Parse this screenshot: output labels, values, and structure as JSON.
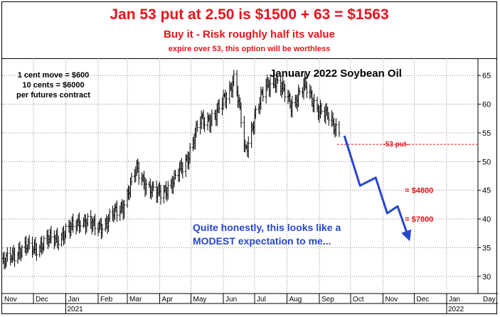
{
  "banner": {
    "headline": "Jan 53 put at 2.50 is $1500 + 63 = $1563",
    "subline": "Buy it - Risk roughly half its value",
    "smallline": "expire over 53, this option will be worthless"
  },
  "notes": {
    "contract_lines": [
      "1 cent move = $600",
      "10 cents = $6000",
      "per futures contract"
    ],
    "commentary_lines": [
      "Quite honestly, this looks like a",
      "MODEST expectation to me..."
    ]
  },
  "colors": {
    "red": "#e8131b",
    "blue": "#2846cc",
    "bars": "#000000"
  },
  "chart_data": {
    "type": "bar",
    "subtype": "ohlc-price-bars",
    "title": "January 2022 Soybean Oil",
    "y_axis": {
      "side": "right",
      "ylim": [
        27,
        68
      ],
      "ticks": [
        30,
        35,
        40,
        45,
        50,
        55,
        60,
        65
      ]
    },
    "x_axis": {
      "months": [
        "Nov",
        "Dec",
        "Jan",
        "Feb",
        "Mar",
        "Apr",
        "May",
        "Jun",
        "Jul",
        "Aug",
        "Sep",
        "Oct",
        "Nov",
        "Dec",
        "Jan",
        "Day"
      ],
      "years": [
        "2021",
        "2022"
      ],
      "date_range": [
        "2020-11-01",
        "2022-01-31"
      ]
    },
    "price_path": [
      {
        "date": "2020-11-02",
        "close": 32.0
      },
      {
        "date": "2020-11-15",
        "close": 34.5
      },
      {
        "date": "2020-12-01",
        "close": 35.0
      },
      {
        "date": "2020-12-20",
        "close": 36.5
      },
      {
        "date": "2021-01-05",
        "close": 38.0
      },
      {
        "date": "2021-01-15",
        "close": 40.0
      },
      {
        "date": "2021-01-28",
        "close": 38.5
      },
      {
        "date": "2021-02-10",
        "close": 39.5
      },
      {
        "date": "2021-02-25",
        "close": 42.5
      },
      {
        "date": "2021-03-10",
        "close": 48.5
      },
      {
        "date": "2021-03-20",
        "close": 46.0
      },
      {
        "date": "2021-03-28",
        "close": 44.0
      },
      {
        "date": "2021-04-15",
        "close": 46.5
      },
      {
        "date": "2021-04-28",
        "close": 51.0
      },
      {
        "date": "2021-05-10",
        "close": 57.0
      },
      {
        "date": "2021-05-25",
        "close": 58.0
      },
      {
        "date": "2021-06-05",
        "close": 62.0
      },
      {
        "date": "2021-06-12",
        "close": 65.0
      },
      {
        "date": "2021-06-22",
        "close": 51.5
      },
      {
        "date": "2021-07-01",
        "close": 58.0
      },
      {
        "date": "2021-07-12",
        "close": 63.0
      },
      {
        "date": "2021-07-20",
        "close": 64.5
      },
      {
        "date": "2021-08-05",
        "close": 60.0
      },
      {
        "date": "2021-08-18",
        "close": 63.0
      },
      {
        "date": "2021-09-01",
        "close": 59.0
      },
      {
        "date": "2021-09-10",
        "close": 57.5
      },
      {
        "date": "2021-09-20",
        "close": 55.5
      }
    ],
    "projection": {
      "points": [
        {
          "date": "2021-09-25",
          "value": 54.5
        },
        {
          "date": "2021-10-10",
          "value": 45.8
        },
        {
          "date": "2021-10-25",
          "value": 47.2
        },
        {
          "date": "2021-11-05",
          "value": 41.0
        },
        {
          "date": "2021-11-15",
          "value": 42.2
        },
        {
          "date": "2021-11-25",
          "value": 37.0
        }
      ]
    },
    "annotations": [
      {
        "label": "-53 put-",
        "value": 53.0,
        "style": "dashed-line"
      },
      {
        "label": "= $4800",
        "value": 45.0
      },
      {
        "label": "= $7800",
        "value": 40.0
      }
    ]
  }
}
